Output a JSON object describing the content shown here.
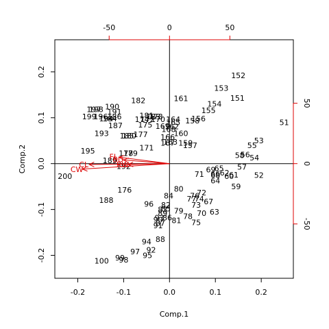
{
  "chart_data": {
    "type": "scatter",
    "subtype": "biplot",
    "xlabel": "Comp.1",
    "ylabel": "Comp.2",
    "xlim": [
      -0.25,
      0.27
    ],
    "ylim": [
      -0.25,
      0.27
    ],
    "x_ticks": [
      -0.2,
      -0.1,
      0.0,
      0.1,
      0.2
    ],
    "y_ticks": [
      -0.2,
      -0.1,
      0.0,
      0.1,
      0.2
    ],
    "x_tick_labels": [
      "-0.2",
      "-0.1",
      "0.0",
      "0.1",
      "0.2"
    ],
    "y_tick_labels": [
      "-0.2",
      "-0.1",
      "0.0",
      "0.1",
      "0.2"
    ],
    "top_ticks": [
      -50,
      0,
      50
    ],
    "top_tick_labels": [
      "-50",
      "0",
      "50"
    ],
    "right_ticks": [
      -50,
      0,
      50
    ],
    "right_tick_labels": [
      "-50",
      "0",
      "50"
    ],
    "variable_color": "#dd0000",
    "point_color": "#000000",
    "points": [
      {
        "label": "51",
        "x": 0.25,
        "y": 0.09
      },
      {
        "label": "52",
        "x": 0.195,
        "y": -0.025
      },
      {
        "label": "53",
        "x": 0.195,
        "y": 0.05
      },
      {
        "label": "54",
        "x": 0.185,
        "y": 0.013
      },
      {
        "label": "55",
        "x": 0.18,
        "y": 0.04
      },
      {
        "label": "56",
        "x": 0.165,
        "y": 0.02
      },
      {
        "label": "57",
        "x": 0.158,
        "y": -0.007
      },
      {
        "label": "58",
        "x": 0.153,
        "y": 0.018
      },
      {
        "label": "59",
        "x": 0.145,
        "y": -0.05
      },
      {
        "label": "60",
        "x": 0.13,
        "y": -0.027
      },
      {
        "label": "61",
        "x": 0.14,
        "y": -0.024
      },
      {
        "label": "62",
        "x": 0.12,
        "y": -0.02
      },
      {
        "label": "63",
        "x": 0.098,
        "y": -0.105
      },
      {
        "label": "64",
        "x": 0.1,
        "y": -0.037
      },
      {
        "label": "65",
        "x": 0.108,
        "y": -0.01
      },
      {
        "label": "66",
        "x": 0.1,
        "y": -0.022
      },
      {
        "label": "67",
        "x": 0.085,
        "y": -0.083
      },
      {
        "label": "68",
        "x": 0.1,
        "y": -0.025
      },
      {
        "label": "69",
        "x": 0.09,
        "y": -0.013
      },
      {
        "label": "70",
        "x": 0.07,
        "y": -0.108
      },
      {
        "label": "71",
        "x": 0.065,
        "y": -0.023
      },
      {
        "label": "72",
        "x": 0.07,
        "y": -0.063
      },
      {
        "label": "73",
        "x": 0.058,
        "y": -0.09
      },
      {
        "label": "74",
        "x": 0.065,
        "y": -0.077
      },
      {
        "label": "75",
        "x": 0.058,
        "y": -0.128
      },
      {
        "label": "76",
        "x": 0.055,
        "y": -0.07
      },
      {
        "label": "77",
        "x": 0.048,
        "y": -0.077
      },
      {
        "label": "78",
        "x": 0.04,
        "y": -0.115
      },
      {
        "label": "79",
        "x": 0.02,
        "y": -0.103
      },
      {
        "label": "80",
        "x": 0.02,
        "y": -0.055
      },
      {
        "label": "81",
        "x": 0.015,
        "y": -0.124
      },
      {
        "label": "82",
        "x": -0.008,
        "y": -0.09
      },
      {
        "label": "83",
        "x": -0.015,
        "y": -0.1
      },
      {
        "label": "84",
        "x": -0.002,
        "y": -0.07
      },
      {
        "label": "85",
        "x": -0.008,
        "y": -0.098
      },
      {
        "label": "86",
        "x": -0.005,
        "y": -0.118
      },
      {
        "label": "87",
        "x": -0.02,
        "y": -0.13
      },
      {
        "label": "88",
        "x": -0.02,
        "y": -0.165
      },
      {
        "label": "89",
        "x": -0.015,
        "y": -0.108
      },
      {
        "label": "90",
        "x": -0.025,
        "y": -0.122
      },
      {
        "label": "91",
        "x": -0.025,
        "y": -0.135
      },
      {
        "label": "92",
        "x": -0.04,
        "y": -0.188
      },
      {
        "label": "93",
        "x": -0.022,
        "y": -0.118
      },
      {
        "label": "94",
        "x": -0.05,
        "y": -0.17
      },
      {
        "label": "95",
        "x": -0.048,
        "y": -0.2
      },
      {
        "label": "96",
        "x": -0.045,
        "y": -0.088
      },
      {
        "label": "97",
        "x": -0.075,
        "y": -0.192
      },
      {
        "label": "98",
        "x": -0.1,
        "y": -0.21
      },
      {
        "label": "99",
        "x": -0.108,
        "y": -0.205
      },
      {
        "label": "100",
        "x": -0.148,
        "y": -0.212
      },
      {
        "label": "152",
        "x": 0.15,
        "y": 0.192
      },
      {
        "label": "153",
        "x": 0.113,
        "y": 0.165
      },
      {
        "label": "151",
        "x": 0.148,
        "y": 0.143
      },
      {
        "label": "161",
        "x": 0.025,
        "y": 0.142
      },
      {
        "label": "154",
        "x": 0.098,
        "y": 0.13
      },
      {
        "label": "155",
        "x": 0.085,
        "y": 0.116
      },
      {
        "label": "156",
        "x": 0.063,
        "y": 0.098
      },
      {
        "label": "158",
        "x": 0.05,
        "y": 0.094
      },
      {
        "label": "182",
        "x": -0.068,
        "y": 0.138
      },
      {
        "label": "190",
        "x": -0.125,
        "y": 0.124
      },
      {
        "label": "197",
        "x": -0.165,
        "y": 0.118
      },
      {
        "label": "198",
        "x": -0.16,
        "y": 0.118
      },
      {
        "label": "191",
        "x": -0.12,
        "y": 0.113
      },
      {
        "label": "199",
        "x": -0.175,
        "y": 0.103
      },
      {
        "label": "196",
        "x": -0.15,
        "y": 0.103
      },
      {
        "label": "186",
        "x": -0.12,
        "y": 0.103
      },
      {
        "label": "184",
        "x": -0.13,
        "y": 0.098
      },
      {
        "label": "194",
        "x": -0.138,
        "y": 0.098
      },
      {
        "label": "181",
        "x": -0.05,
        "y": 0.105
      },
      {
        "label": "183",
        "x": -0.035,
        "y": 0.103
      },
      {
        "label": "173",
        "x": -0.03,
        "y": 0.103
      },
      {
        "label": "174",
        "x": -0.06,
        "y": 0.097
      },
      {
        "label": "172",
        "x": -0.048,
        "y": 0.097
      },
      {
        "label": "170",
        "x": -0.025,
        "y": 0.097
      },
      {
        "label": "164",
        "x": 0.008,
        "y": 0.097
      },
      {
        "label": "165",
        "x": 0.008,
        "y": 0.09
      },
      {
        "label": "187",
        "x": -0.118,
        "y": 0.083
      },
      {
        "label": "175",
        "x": -0.053,
        "y": 0.085
      },
      {
        "label": "169",
        "x": -0.015,
        "y": 0.082
      },
      {
        "label": "162",
        "x": 0.005,
        "y": 0.081
      },
      {
        "label": "168",
        "x": -0.002,
        "y": 0.075
      },
      {
        "label": "160",
        "x": 0.025,
        "y": 0.066
      },
      {
        "label": "193",
        "x": -0.148,
        "y": 0.066
      },
      {
        "label": "177",
        "x": -0.063,
        "y": 0.064
      },
      {
        "label": "185",
        "x": -0.093,
        "y": 0.061
      },
      {
        "label": "180",
        "x": -0.088,
        "y": 0.061
      },
      {
        "label": "166",
        "x": -0.004,
        "y": 0.058
      },
      {
        "label": "163",
        "x": 0.002,
        "y": 0.047
      },
      {
        "label": "157",
        "x": 0.045,
        "y": 0.04
      },
      {
        "label": "159",
        "x": 0.035,
        "y": 0.045
      },
      {
        "label": "167",
        "x": -0.004,
        "y": 0.045
      },
      {
        "label": "171",
        "x": -0.05,
        "y": 0.035
      },
      {
        "label": "195",
        "x": -0.178,
        "y": 0.028
      },
      {
        "label": "179",
        "x": -0.085,
        "y": 0.023
      },
      {
        "label": "178",
        "x": -0.095,
        "y": 0.023
      },
      {
        "label": "189",
        "x": -0.13,
        "y": 0.007
      },
      {
        "label": "192",
        "x": -0.1,
        "y": -0.006
      },
      {
        "label": "188",
        "x": -0.138,
        "y": -0.08
      },
      {
        "label": "176",
        "x": -0.098,
        "y": -0.057
      },
      {
        "label": "200",
        "x": -0.228,
        "y": -0.027
      }
    ],
    "arrows": [
      {
        "name": "CW",
        "x": -0.19,
        "y": -0.012
      },
      {
        "name": "CL",
        "x": -0.175,
        "y": -0.002
      },
      {
        "name": "FL",
        "x": -0.11,
        "y": 0.014
      },
      {
        "name": "BD",
        "x": -0.1,
        "y": 0.008
      },
      {
        "name": "RW",
        "x": -0.09,
        "y": -0.002
      }
    ]
  }
}
